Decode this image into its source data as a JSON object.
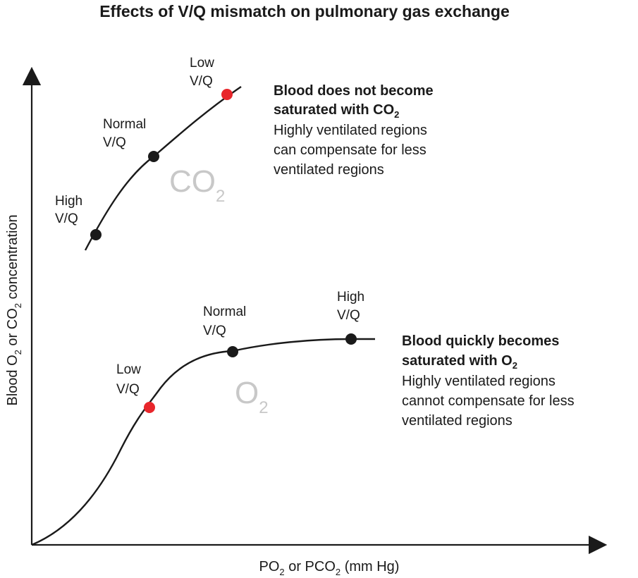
{
  "title": "Effects of V/Q mismatch on pulmonary gas exchange",
  "axes": {
    "y_label_prefix": "Blood O",
    "y_label_sub1": "2",
    "y_label_middle": " or CO",
    "y_label_sub2": "2",
    "y_label_suffix": " concentration",
    "x_label_prefix": "PO",
    "x_label_sub1": "2",
    "x_label_middle": " or PCO",
    "x_label_sub2": "2",
    "x_label_suffix": " (mm Hg)"
  },
  "co2_curve": {
    "gas_main": "CO",
    "gas_sub": "2",
    "points": [
      {
        "line1": "High",
        "line2": "V/Q",
        "color": "#1a1a1a"
      },
      {
        "line1": "Normal",
        "line2": "V/Q",
        "color": "#1a1a1a"
      },
      {
        "line1": "Low",
        "line2": "V/Q",
        "color": "#e8262b"
      }
    ],
    "note_bold_main": "Blood does not become",
    "note_bold_line2_prefix": "saturated with CO",
    "note_bold_line2_sub": "2",
    "note_lines": [
      "Highly ventilated regions",
      "can compensate for less",
      "ventilated regions"
    ]
  },
  "o2_curve": {
    "gas_main": "O",
    "gas_sub": "2",
    "points": [
      {
        "line1": "Low",
        "line2": "V/Q",
        "color": "#e8262b"
      },
      {
        "line1": "Normal",
        "line2": "V/Q",
        "color": "#1a1a1a"
      },
      {
        "line1": "High",
        "line2": "V/Q",
        "color": "#1a1a1a"
      }
    ],
    "note_bold_main": "Blood quickly becomes",
    "note_bold_line2_prefix": "saturated with O",
    "note_bold_line2_sub": "2",
    "note_lines": [
      "Highly ventilated regions",
      "cannot compensate for less",
      "ventilated regions"
    ]
  }
}
